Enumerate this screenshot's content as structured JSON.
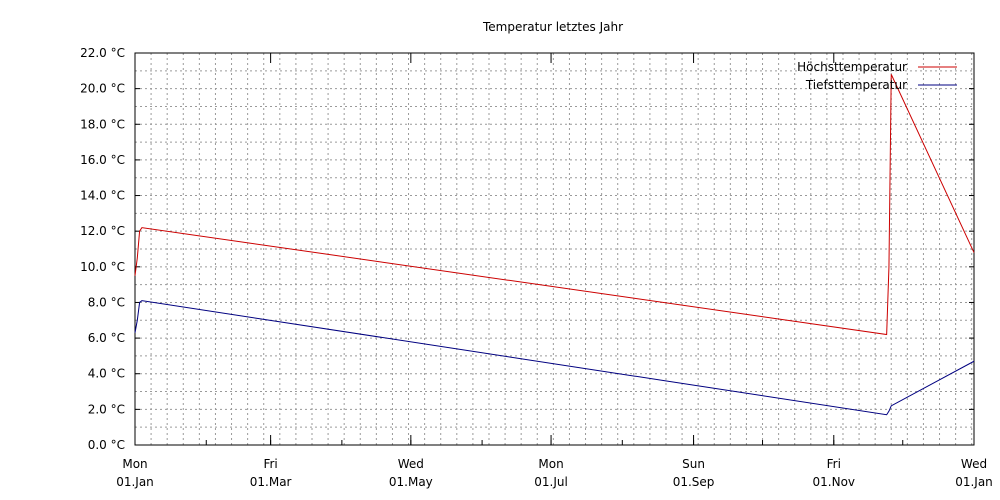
{
  "chart_data": {
    "type": "line",
    "title": "Temperatur letztes Jahr",
    "xlabel": "",
    "ylabel": "",
    "ylim": [
      0,
      22
    ],
    "y_ticks": [
      "0.0 °C",
      "2.0 °C",
      "4.0 °C",
      "6.0 °C",
      "8.0 °C",
      "10.0 °C",
      "12.0 °C",
      "14.0 °C",
      "16.0 °C",
      "18.0 °C",
      "20.0 °C",
      "22.0 °C"
    ],
    "x_ticks": [
      {
        "day": "Mon",
        "date": "01.Jan"
      },
      {
        "day": "Fri",
        "date": "01.Mar"
      },
      {
        "day": "Wed",
        "date": "01.May"
      },
      {
        "day": "Mon",
        "date": "01.Jul"
      },
      {
        "day": "Sun",
        "date": "01.Sep"
      },
      {
        "day": "Fri",
        "date": "01.Nov"
      },
      {
        "day": "Wed",
        "date": "01.Jan"
      }
    ],
    "grid": true,
    "legend_position": "top-right",
    "series": [
      {
        "name": "Höchsttemperatur",
        "color": "#cc0000",
        "points": [
          [
            "2018-01-01",
            9.5
          ],
          [
            "2018-01-02",
            10.5
          ],
          [
            "2018-01-03",
            12.0
          ],
          [
            "2018-01-04",
            12.2
          ],
          [
            "2018-11-24",
            6.2
          ],
          [
            "2018-11-25",
            10.0
          ],
          [
            "2018-11-26",
            20.8
          ],
          [
            "2019-01-01",
            10.8
          ]
        ]
      },
      {
        "name": "Tiefsttemperatur",
        "color": "#000080",
        "points": [
          [
            "2018-01-01",
            6.3
          ],
          [
            "2018-01-02",
            7.0
          ],
          [
            "2018-01-03",
            8.0
          ],
          [
            "2018-01-04",
            8.1
          ],
          [
            "2018-11-24",
            1.7
          ],
          [
            "2018-11-25",
            1.9
          ],
          [
            "2018-11-26",
            2.2
          ],
          [
            "2019-01-01",
            4.7
          ]
        ]
      }
    ]
  }
}
